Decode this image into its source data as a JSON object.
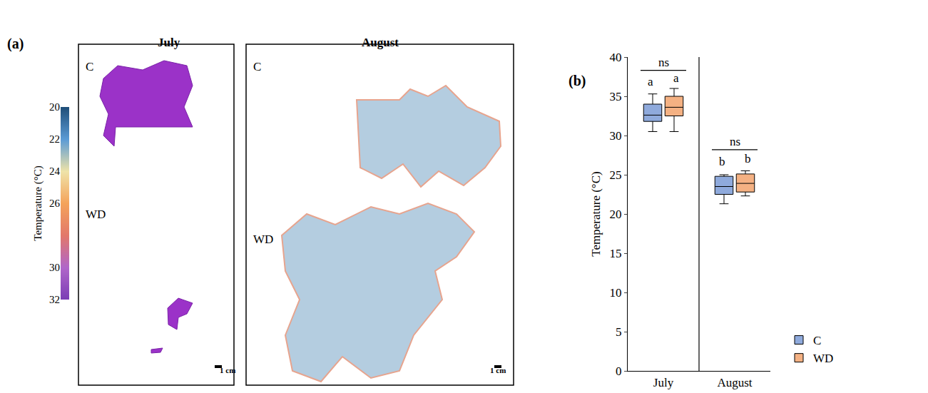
{
  "panel_a": {
    "label": "(a)",
    "columns": [
      "July",
      "August"
    ],
    "rows": [
      "C",
      "WD"
    ],
    "scale_bar": "1 cm",
    "colorbar": {
      "title": "Temperature (°C)",
      "range": [
        20,
        32
      ],
      "ticks": [
        20,
        22,
        24,
        26,
        30,
        32
      ]
    }
  },
  "chart_data": {
    "type": "box",
    "panel_label": "(b)",
    "y_label": "Temperature (°C)",
    "categories": [
      "July",
      "August"
    ],
    "series": [
      {
        "name": "C",
        "color": "#8faadc",
        "stats": {
          "min": [
            30.5,
            21.3
          ],
          "q1": [
            31.8,
            22.5
          ],
          "median": [
            32.6,
            23.5
          ],
          "q3": [
            34,
            24.8
          ],
          "max": [
            35.3,
            25
          ]
        }
      },
      {
        "name": "WD",
        "color": "#f4b183",
        "stats": {
          "min": [
            30.5,
            22.3
          ],
          "q1": [
            32.5,
            22.8
          ],
          "median": [
            33.6,
            23.9
          ],
          "q3": [
            35,
            25.1
          ],
          "max": [
            36,
            25.5
          ]
        }
      }
    ],
    "ylim": [
      0,
      40
    ],
    "yticks": [
      0,
      5,
      10,
      15,
      20,
      25,
      30,
      35,
      40
    ],
    "legend": "bottom right",
    "letters": [
      {
        "category": "July",
        "series": "C",
        "text": "a",
        "y": 35.8
      },
      {
        "category": "July",
        "series": "WD",
        "text": "a",
        "y": 36.3
      },
      {
        "category": "August",
        "series": "C",
        "text": "b",
        "y": 25.6
      },
      {
        "category": "August",
        "series": "WD",
        "text": "b",
        "y": 26
      }
    ],
    "brackets": [
      {
        "category": "July",
        "text": "ns",
        "y": 38.3
      },
      {
        "category": "August",
        "text": "ns",
        "y": 28.2
      }
    ]
  }
}
